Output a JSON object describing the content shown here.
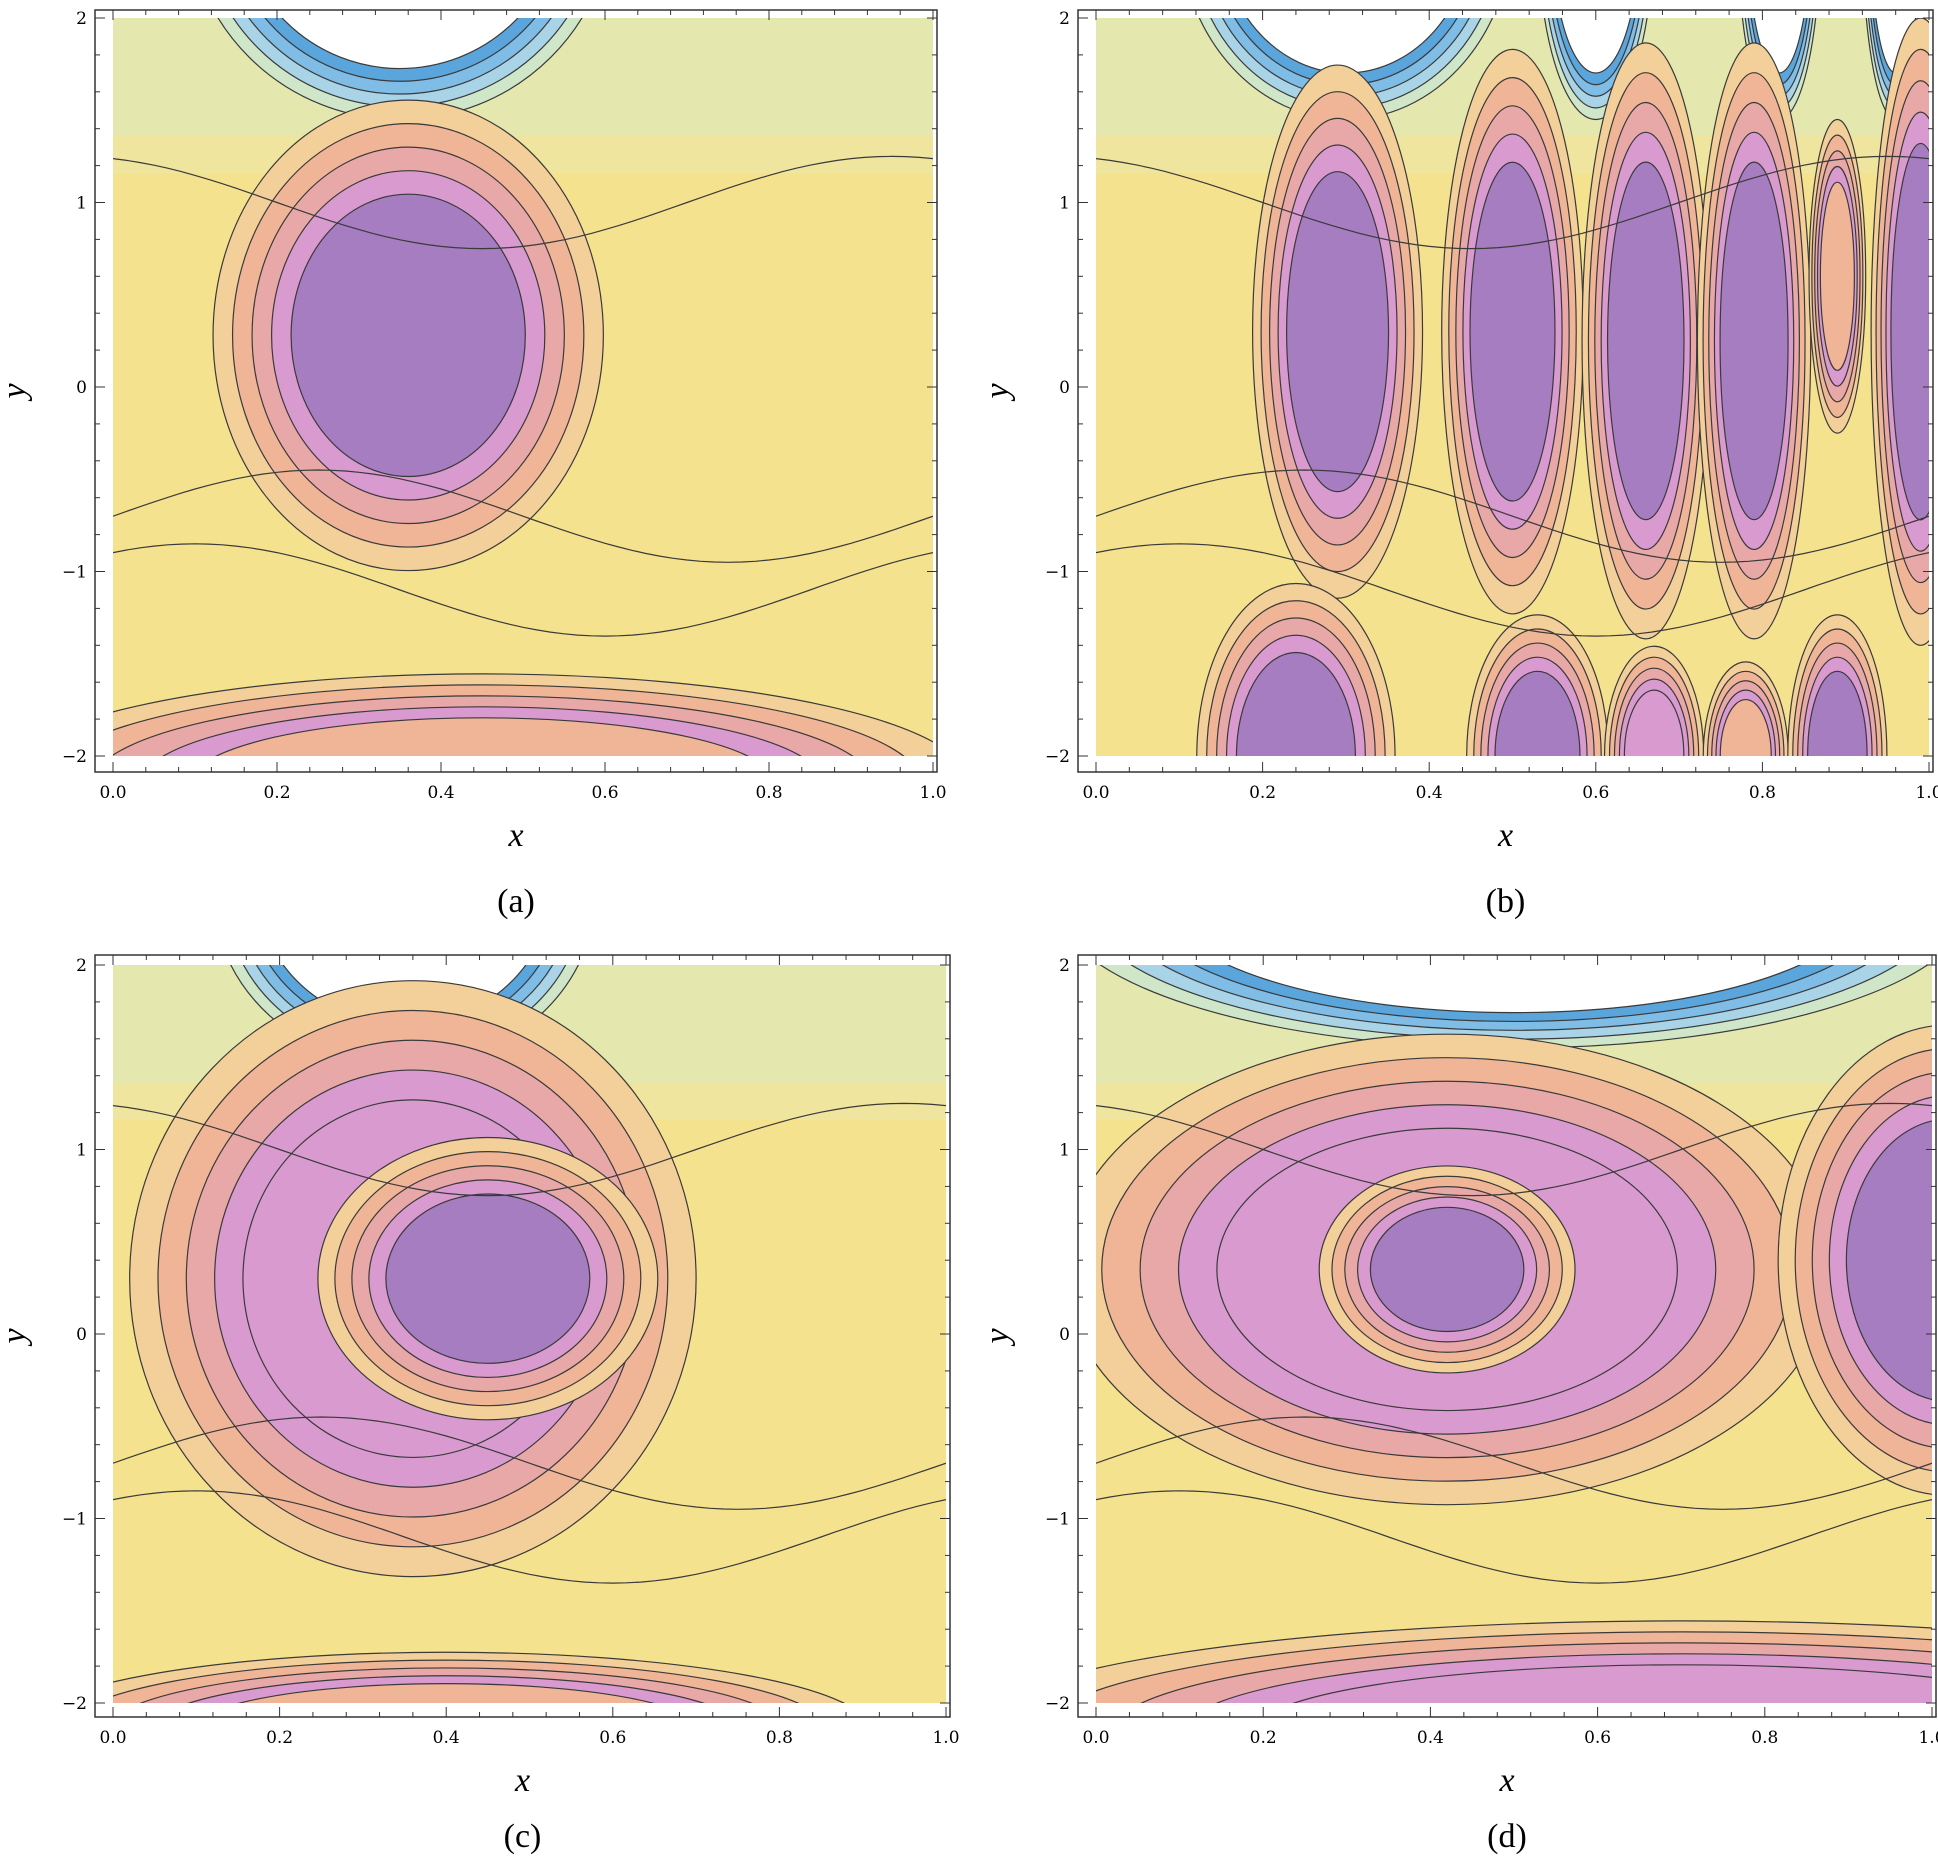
{
  "chart_data": [
    {
      "type": "contour",
      "caption": "(a)",
      "xlabel": "x",
      "ylabel": "y",
      "xlim": [
        0.0,
        1.0
      ],
      "ylim": [
        -2,
        2
      ],
      "x_ticks": [
        "0.0",
        "0.2",
        "0.4",
        "0.6",
        "0.8",
        "1.0"
      ],
      "y_ticks": [
        "−2",
        "−1",
        "0",
        "1",
        "2"
      ],
      "features": [
        {
          "kind": "trough",
          "cx": 0.35,
          "cy": 2.6,
          "rx": 0.26,
          "ry": 1.15,
          "color": "#5aa5dc"
        },
        {
          "kind": "peak",
          "cx": 0.36,
          "cy": 0.28,
          "rx": 0.14,
          "ry": 0.75,
          "color": "#a57dc0"
        },
        {
          "kind": "peak",
          "cx": 0.45,
          "cy": -2.15,
          "rx": 0.35,
          "ry": 0.35,
          "color": "#f0b597"
        }
      ]
    },
    {
      "type": "contour",
      "caption": "(b)",
      "xlabel": "x",
      "ylabel": "y",
      "xlim": [
        0.0,
        1.0
      ],
      "ylim": [
        -2,
        2
      ],
      "x_ticks": [
        "0.0",
        "0.2",
        "0.4",
        "0.6",
        "0.8",
        "1.0"
      ],
      "y_ticks": [
        "−2",
        "−1",
        "0",
        "1",
        "2"
      ],
      "features": [
        {
          "kind": "trough",
          "cx": 0.3,
          "cy": 2.5,
          "rx": 0.2,
          "ry": 1.05,
          "color": "#5aa5dc"
        },
        {
          "kind": "trough",
          "cx": 0.6,
          "cy": 2.5,
          "rx": 0.07,
          "ry": 1.05,
          "color": "#5aa5dc"
        },
        {
          "kind": "trough",
          "cx": 0.82,
          "cy": 2.5,
          "rx": 0.05,
          "ry": 1.05,
          "color": "#5aa5dc"
        },
        {
          "kind": "trough",
          "cx": 0.96,
          "cy": 2.5,
          "rx": 0.04,
          "ry": 1.05,
          "color": "#5aa5dc"
        },
        {
          "kind": "peak",
          "cx": 0.29,
          "cy": 0.3,
          "rx": 0.06,
          "ry": 0.85,
          "color": "#a57dc0"
        },
        {
          "kind": "peak",
          "cx": 0.5,
          "cy": 0.3,
          "rx": 0.05,
          "ry": 0.9,
          "color": "#a57dc0"
        },
        {
          "kind": "peak",
          "cx": 0.66,
          "cy": 0.25,
          "rx": 0.045,
          "ry": 0.95,
          "color": "#a57dc0"
        },
        {
          "kind": "peak",
          "cx": 0.79,
          "cy": 0.25,
          "rx": 0.04,
          "ry": 0.95,
          "color": "#a57dc0"
        },
        {
          "kind": "peak",
          "cx": 0.89,
          "cy": 0.6,
          "rx": 0.02,
          "ry": 0.5,
          "color": "#f0b597"
        },
        {
          "kind": "peak",
          "cx": 0.99,
          "cy": 0.3,
          "rx": 0.035,
          "ry": 1.0,
          "color": "#a57dc0"
        },
        {
          "kind": "peak",
          "cx": 0.24,
          "cy": -2.0,
          "rx": 0.07,
          "ry": 0.55,
          "color": "#a57dc0"
        },
        {
          "kind": "peak",
          "cx": 0.53,
          "cy": -2.0,
          "rx": 0.05,
          "ry": 0.45,
          "color": "#a57dc0"
        },
        {
          "kind": "peak",
          "cx": 0.67,
          "cy": -2.0,
          "rx": 0.035,
          "ry": 0.35,
          "color": "#d99ad0"
        },
        {
          "kind": "peak",
          "cx": 0.78,
          "cy": -2.0,
          "rx": 0.03,
          "ry": 0.3,
          "color": "#f0b597"
        },
        {
          "kind": "peak",
          "cx": 0.89,
          "cy": -2.0,
          "rx": 0.035,
          "ry": 0.45,
          "color": "#a57dc0"
        }
      ]
    },
    {
      "type": "contour",
      "caption": "(c)",
      "xlabel": "x",
      "ylabel": "y",
      "xlim": [
        0.0,
        1.0
      ],
      "ylim": [
        -2,
        2
      ],
      "x_ticks": [
        "0.0",
        "0.2",
        "0.4",
        "0.6",
        "0.8",
        "1.0"
      ],
      "y_ticks": [
        "−2",
        "−1",
        "0",
        "1",
        "2"
      ],
      "features": [
        {
          "kind": "trough",
          "cx": 0.35,
          "cy": 2.4,
          "rx": 0.23,
          "ry": 0.95,
          "color": "#5aa5dc"
        },
        {
          "kind": "peak",
          "cx": 0.36,
          "cy": 0.3,
          "rx": 0.2,
          "ry": 0.95,
          "color": "#d99ad0"
        },
        {
          "kind": "peak",
          "cx": 0.45,
          "cy": 0.3,
          "rx": 0.12,
          "ry": 0.45,
          "color": "#a57dc0"
        },
        {
          "kind": "peak",
          "cx": 0.4,
          "cy": -2.15,
          "rx": 0.3,
          "ry": 0.25,
          "color": "#f0b597"
        }
      ]
    },
    {
      "type": "contour",
      "caption": "(d)",
      "xlabel": "x",
      "ylabel": "y",
      "xlim": [
        0.0,
        1.0
      ],
      "ylim": [
        -2,
        2
      ],
      "x_ticks": [
        "0.0",
        "0.2",
        "0.4",
        "0.6",
        "0.8",
        "1.0"
      ],
      "y_ticks": [
        "−2",
        "−1",
        "0",
        "1",
        "2"
      ],
      "features": [
        {
          "kind": "trough",
          "cx": 0.5,
          "cy": 2.35,
          "rx": 0.55,
          "ry": 0.8,
          "color": "#5aa5dc"
        },
        {
          "kind": "peak",
          "cx": 0.42,
          "cy": 0.35,
          "rx": 0.27,
          "ry": 0.75,
          "color": "#d99ad0"
        },
        {
          "kind": "peak",
          "cx": 0.42,
          "cy": 0.35,
          "rx": 0.09,
          "ry": 0.33,
          "color": "#a57dc0"
        },
        {
          "kind": "peak",
          "cx": 1.02,
          "cy": 0.4,
          "rx": 0.12,
          "ry": 0.75,
          "color": "#a57dc0"
        },
        {
          "kind": "peak",
          "cx": 0.7,
          "cy": -2.15,
          "rx": 0.5,
          "ry": 0.35,
          "color": "#d99ad0"
        }
      ]
    }
  ]
}
